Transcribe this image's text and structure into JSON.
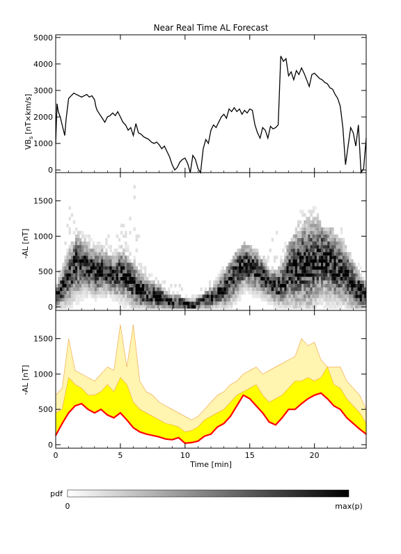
{
  "chart_data": [
    {
      "type": "line",
      "title": "Near Real Time AL Forecast",
      "ylabel": "VB",
      "ylabel_sub": "s",
      "ylabel_unit": "[nT×km/s]",
      "xlim": [
        0,
        24
      ],
      "ylim": [
        -100,
        5100
      ],
      "yticks": [
        0,
        1000,
        2000,
        3000,
        4000,
        5000
      ],
      "series": [
        {
          "color": "#000000",
          "x": [
            0.0,
            0.1,
            0.2,
            0.35,
            0.5,
            0.7,
            0.8,
            0.9,
            1.0,
            1.2,
            1.4,
            1.6,
            1.8,
            2.0,
            2.2,
            2.4,
            2.6,
            2.8,
            3.0,
            3.1,
            3.2,
            3.4,
            3.6,
            3.8,
            4.0,
            4.2,
            4.4,
            4.6,
            4.8,
            5.0,
            5.2,
            5.4,
            5.6,
            5.8,
            6.0,
            6.2,
            6.4,
            6.6,
            6.8,
            7.0,
            7.2,
            7.4,
            7.6,
            7.8,
            8.0,
            8.2,
            8.4,
            8.6,
            8.8,
            9.0,
            9.2,
            9.4,
            9.6,
            9.8,
            10.0,
            10.2,
            10.4,
            10.6,
            10.8,
            11.0,
            11.2,
            11.4,
            11.6,
            11.8,
            12.0,
            12.2,
            12.4,
            12.6,
            12.8,
            13.0,
            13.2,
            13.4,
            13.6,
            13.8,
            14.0,
            14.2,
            14.4,
            14.6,
            14.8,
            15.0,
            15.2,
            15.4,
            15.6,
            15.8,
            16.0,
            16.2,
            16.4,
            16.6,
            16.8,
            17.0,
            17.2,
            17.4,
            17.6,
            17.8,
            18.0,
            18.2,
            18.4,
            18.6,
            18.8,
            19.0,
            19.2,
            19.4,
            19.6,
            19.8,
            20.0,
            20.2,
            20.4,
            20.6,
            20.8,
            21.0,
            21.2,
            21.4,
            21.6,
            21.8,
            22.0,
            22.2,
            22.4,
            22.6,
            22.8,
            23.0,
            23.2,
            23.4,
            23.6,
            23.8,
            24.0
          ],
          "y": [
            1000,
            2500,
            2200,
            2000,
            1700,
            1300,
            1900,
            2300,
            2700,
            2800,
            2900,
            2850,
            2800,
            2750,
            2800,
            2850,
            2750,
            2800,
            2650,
            2400,
            2250,
            2100,
            1950,
            1800,
            2000,
            2050,
            2150,
            2050,
            2200,
            2000,
            1800,
            1700,
            1500,
            1600,
            1300,
            1750,
            1400,
            1350,
            1250,
            1200,
            1150,
            1050,
            1000,
            1050,
            950,
            800,
            900,
            700,
            500,
            200,
            0,
            100,
            300,
            400,
            450,
            250,
            -100,
            550,
            400,
            50,
            -100,
            800,
            1150,
            1000,
            1500,
            1700,
            1600,
            1800,
            2000,
            2100,
            1950,
            2300,
            2200,
            2350,
            2200,
            2300,
            2100,
            2250,
            2150,
            2300,
            2250,
            1700,
            1400,
            1200,
            1600,
            1500,
            1200,
            1650,
            1550,
            1600,
            1700,
            4300,
            4100,
            4200,
            3550,
            3700,
            3400,
            3750,
            3600,
            3850,
            3650,
            3400,
            3150,
            3600,
            3650,
            3550,
            3450,
            3400,
            3300,
            3250,
            3100,
            3050,
            2850,
            2700,
            2400,
            1600,
            200,
            900,
            1600,
            1400,
            900,
            1700,
            -100,
            50,
            1200
          ]
        }
      ]
    },
    {
      "type": "heatmap",
      "ylabel": "-AL [nT]",
      "xlim": [
        0,
        24
      ],
      "ylim": [
        -50,
        1900
      ],
      "yticks": [
        0,
        500,
        1000,
        1500
      ],
      "x": [
        0.0,
        0.5,
        1.0,
        1.5,
        2.0,
        2.5,
        3.0,
        3.5,
        4.0,
        4.5,
        5.0,
        5.5,
        6.0,
        6.5,
        7.0,
        7.5,
        8.0,
        8.5,
        9.0,
        9.5,
        10.0,
        10.5,
        11.0,
        11.5,
        12.0,
        12.5,
        13.0,
        13.5,
        14.0,
        14.5,
        15.0,
        15.5,
        16.0,
        16.5,
        17.0,
        17.5,
        18.0,
        18.5,
        19.0,
        19.5,
        20.0,
        20.5,
        21.0,
        21.5,
        22.0,
        22.5,
        23.0,
        23.5,
        24.0
      ],
      "center": [
        150,
        300,
        450,
        600,
        580,
        550,
        500,
        520,
        480,
        430,
        470,
        420,
        300,
        230,
        180,
        160,
        120,
        80,
        50,
        60,
        30,
        20,
        50,
        100,
        130,
        200,
        280,
        380,
        520,
        600,
        560,
        500,
        420,
        320,
        280,
        350,
        520,
        550,
        600,
        620,
        650,
        700,
        650,
        580,
        500,
        420,
        300,
        200,
        150
      ],
      "spread": [
        150,
        250,
        350,
        400,
        350,
        300,
        300,
        280,
        260,
        250,
        320,
        300,
        300,
        250,
        220,
        200,
        180,
        150,
        120,
        100,
        90,
        80,
        100,
        120,
        150,
        180,
        250,
        300,
        320,
        300,
        280,
        260,
        240,
        200,
        220,
        300,
        450,
        500,
        550,
        600,
        550,
        500,
        480,
        450,
        400,
        350,
        300,
        250,
        150
      ],
      "top": [
        400,
        700,
        1500,
        1100,
        1050,
        1000,
        900,
        900,
        1000,
        900,
        1650,
        1100,
        1700,
        800,
        600,
        500,
        450,
        400,
        350,
        300,
        250,
        200,
        250,
        300,
        400,
        500,
        600,
        700,
        800,
        900,
        850,
        800,
        700,
        1000,
        1100,
        1000,
        900,
        1100,
        1500,
        1400,
        1450,
        1100,
        1100,
        1100,
        1100,
        800,
        700,
        600,
        400
      ],
      "colorbar": {
        "label": "pdf",
        "min_label": "0",
        "max_label": "max(p)"
      }
    },
    {
      "type": "area",
      "ylabel": "-AL [nT]",
      "xlabel": "Time [min]",
      "xlim": [
        0,
        24
      ],
      "ylim": [
        -50,
        1900
      ],
      "xticks": [
        0,
        5,
        10,
        15,
        20
      ],
      "yticks": [
        0,
        500,
        1000,
        1500
      ],
      "series": [
        {
          "color": "#ff0000",
          "x": [
            0.0,
            0.5,
            1.0,
            1.5,
            2.0,
            2.5,
            3.0,
            3.5,
            4.0,
            4.5,
            5.0,
            5.5,
            6.0,
            6.5,
            7.0,
            7.5,
            8.0,
            8.5,
            9.0,
            9.5,
            10.0,
            10.5,
            11.0,
            11.5,
            12.0,
            12.5,
            13.0,
            13.5,
            14.0,
            14.5,
            15.0,
            15.5,
            16.0,
            16.5,
            17.0,
            17.5,
            18.0,
            18.5,
            19.0,
            19.5,
            20.0,
            20.5,
            21.0,
            21.5,
            22.0,
            22.5,
            23.0,
            23.5,
            24.0
          ],
          "y": [
            130,
            300,
            450,
            550,
            580,
            500,
            450,
            500,
            420,
            380,
            450,
            350,
            240,
            180,
            150,
            130,
            110,
            80,
            70,
            100,
            20,
            30,
            50,
            120,
            150,
            250,
            300,
            400,
            550,
            700,
            650,
            550,
            450,
            320,
            280,
            380,
            500,
            500,
            580,
            650,
            700,
            730,
            650,
            550,
            500,
            380,
            300,
            220,
            150
          ]
        }
      ],
      "bands": [
        {
          "color": "#ffff00",
          "lower": [
            130,
            300,
            450,
            550,
            580,
            500,
            450,
            500,
            420,
            380,
            450,
            350,
            240,
            180,
            150,
            130,
            110,
            80,
            70,
            100,
            20,
            30,
            50,
            120,
            150,
            250,
            300,
            400,
            550,
            700,
            650,
            550,
            450,
            320,
            280,
            380,
            500,
            500,
            580,
            650,
            700,
            730,
            650,
            550,
            500,
            380,
            300,
            220,
            150
          ],
          "upper": [
            450,
            500,
            950,
            850,
            800,
            700,
            700,
            750,
            850,
            750,
            950,
            850,
            600,
            500,
            450,
            400,
            350,
            300,
            280,
            250,
            180,
            200,
            250,
            350,
            400,
            450,
            500,
            600,
            700,
            750,
            800,
            850,
            700,
            600,
            650,
            700,
            800,
            900,
            900,
            950,
            900,
            950,
            1100,
            850,
            800,
            650,
            550,
            450,
            300
          ]
        },
        {
          "color": "#fff4b0",
          "lower": [
            130,
            300,
            450,
            550,
            580,
            500,
            450,
            500,
            420,
            380,
            450,
            350,
            240,
            180,
            150,
            130,
            110,
            80,
            70,
            100,
            20,
            30,
            50,
            120,
            150,
            250,
            300,
            400,
            550,
            700,
            650,
            550,
            450,
            320,
            280,
            380,
            500,
            500,
            580,
            650,
            700,
            730,
            650,
            550,
            500,
            380,
            300,
            220,
            150
          ],
          "upper": [
            700,
            800,
            1500,
            1050,
            1000,
            950,
            900,
            1000,
            1100,
            1050,
            1700,
            1100,
            1700,
            900,
            750,
            700,
            600,
            550,
            500,
            450,
            400,
            350,
            400,
            500,
            600,
            700,
            750,
            850,
            900,
            1000,
            1050,
            1100,
            1000,
            1050,
            1100,
            1150,
            1200,
            1250,
            1500,
            1400,
            1450,
            1200,
            1100,
            1100,
            1100,
            900,
            800,
            700,
            500
          ]
        }
      ]
    }
  ]
}
